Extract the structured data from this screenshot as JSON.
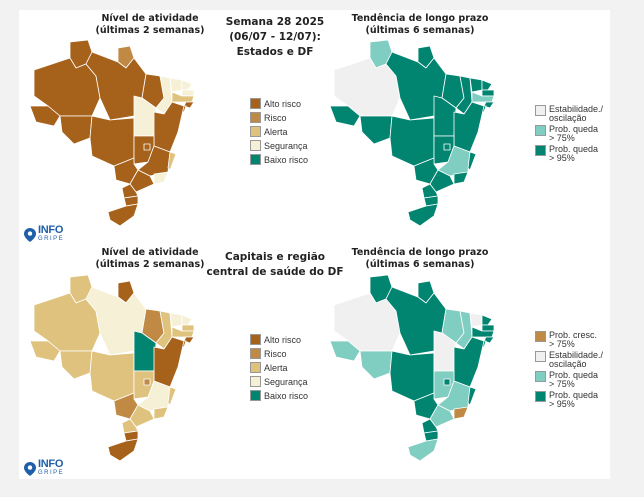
{
  "panels": {
    "top_left_title": "Nível de atividade\n(últimas 2 semanas)",
    "top_center_title": "Semana 28 2025\n(06/07 - 12/07):\nEstados e DF",
    "top_right_title": "Tendência de longo prazo\n(últimas 6 semanas)",
    "bottom_left_title": "Nível de atividade\n(últimas 2 semanas)",
    "bottom_center_title": "Capitais e região\ncentral de saúde do DF",
    "bottom_right_title": "Tendência de longo prazo\n(últimas 6 semanas)"
  },
  "colors": {
    "alto_risco": "#a6611a",
    "risco": "#c08a45",
    "alerta": "#dfc27d",
    "seguranca": "#f6f0d6",
    "baixo_risco": "#018571",
    "prob_cresc": "#c08a45",
    "estabilidade": "#f0f0f0",
    "queda75": "#80cdc1",
    "queda95": "#018571"
  },
  "legend_activity": [
    {
      "label": "Alto risco",
      "color": "#a6611a"
    },
    {
      "label": "Risco",
      "color": "#c08a45"
    },
    {
      "label": "Alerta",
      "color": "#dfc27d"
    },
    {
      "label": "Segurança",
      "color": "#f6f0d6"
    },
    {
      "label": "Baixo risco",
      "color": "#018571"
    }
  ],
  "legend_trend_states": [
    {
      "label": "Estabilidade./\noscilação",
      "color": "#f0f0f0"
    },
    {
      "label": "Prob. queda\n> 75%",
      "color": "#80cdc1"
    },
    {
      "label": "Prob. queda\n> 95%",
      "color": "#018571"
    }
  ],
  "legend_trend_capitals": [
    {
      "label": "Prob. cresc.\n> 75%",
      "color": "#c08a45"
    },
    {
      "label": "Estabilidade./\noscilação",
      "color": "#f0f0f0"
    },
    {
      "label": "Prob. queda\n> 75%",
      "color": "#80cdc1"
    },
    {
      "label": "Prob. queda\n> 95%",
      "color": "#018571"
    }
  ],
  "logo": {
    "main": "INFO",
    "sub": "GRIPE",
    "color": "#1f5fa8"
  },
  "maps": {
    "states_activity": {
      "AM": "alto_risco",
      "RR": "alto_risco",
      "AP": "risco",
      "PA": "alto_risco",
      "AC": "alto_risco",
      "RO": "alto_risco",
      "MT": "alto_risco",
      "TO": "seguranca",
      "MA": "alto_risco",
      "PI": "seguranca",
      "CE": "seguranca",
      "RN": "seguranca",
      "PB": "seguranca",
      "PE": "alerta",
      "AL": "alto_risco",
      "SE": "alto_risco",
      "BA": "alto_risco",
      "GO": "alto_risco",
      "DF": "alto_risco",
      "MG": "alto_risco",
      "MS": "alto_risco",
      "SP": "alto_risco",
      "RJ": "seguranca",
      "ES": "alerta",
      "PR": "alto_risco",
      "SC": "alto_risco",
      "RS": "alto_risco"
    },
    "states_trend": {
      "AM": "estabilidade",
      "RR": "queda75",
      "AP": "queda95",
      "PA": "queda95",
      "AC": "queda95",
      "RO": "queda95",
      "MT": "queda95",
      "TO": "queda95",
      "MA": "queda95",
      "PI": "queda95",
      "CE": "queda95",
      "RN": "queda95",
      "PB": "queda95",
      "PE": "queda75",
      "AL": "queda95",
      "SE": "queda95",
      "BA": "queda95",
      "GO": "queda95",
      "DF": "queda95",
      "MG": "queda75",
      "MS": "queda95",
      "SP": "queda95",
      "RJ": "queda95",
      "ES": "queda95",
      "PR": "queda95",
      "SC": "queda95",
      "RS": "queda95"
    },
    "capitals_activity": {
      "AM": "alerta",
      "RR": "alerta",
      "AP": "alto_risco",
      "PA": "seguranca",
      "AC": "alerta",
      "RO": "alerta",
      "MT": "alerta",
      "TO": "baixo_risco",
      "MA": "risco",
      "PI": "alerta",
      "CE": "seguranca",
      "RN": "seguranca",
      "PB": "alerta",
      "PE": "alerta",
      "AL": "alto_risco",
      "SE": "alto_risco",
      "BA": "alto_risco",
      "GO": "alerta",
      "DF": "risco",
      "MG": "seguranca",
      "MS": "risco",
      "SP": "alerta",
      "RJ": "alerta",
      "ES": "alerta",
      "PR": "alerta",
      "SC": "alto_risco",
      "RS": "alto_risco"
    },
    "capitals_trend": {
      "AM": "estabilidade",
      "RR": "queda95",
      "AP": "queda95",
      "PA": "queda95",
      "AC": "queda75",
      "RO": "queda75",
      "MT": "queda95",
      "TO": "estabilidade",
      "MA": "queda75",
      "PI": "queda75",
      "CE": "estabilidade",
      "RN": "queda95",
      "PB": "queda95",
      "PE": "queda95",
      "AL": "queda95",
      "SE": "queda95",
      "BA": "queda95",
      "GO": "queda75",
      "DF": "queda95",
      "MG": "queda75",
      "MS": "queda95",
      "SP": "queda75",
      "RJ": "prob_cresc",
      "ES": "queda95",
      "PR": "queda95",
      "SC": "queda95",
      "RS": "queda75"
    }
  }
}
